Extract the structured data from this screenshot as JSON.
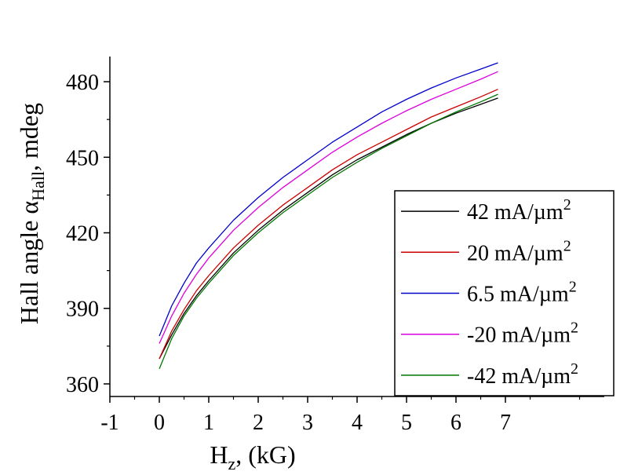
{
  "chart_data": {
    "type": "line",
    "xlabel": {
      "main": "H",
      "sub": "z",
      "rest": ", (kG)"
    },
    "ylabel": {
      "main": "Hall angle α",
      "sub": "Hall",
      "rest": ", mdeg"
    },
    "xlim": [
      -1,
      9
    ],
    "ylim": [
      355,
      490
    ],
    "xticks": [
      -1,
      0,
      1,
      2,
      3,
      4,
      5,
      6,
      7
    ],
    "yticks": [
      360,
      390,
      420,
      450,
      480
    ],
    "x": [
      0,
      0.25,
      0.5,
      0.75,
      1,
      1.5,
      2,
      2.5,
      3,
      3.5,
      4,
      4.5,
      5,
      5.5,
      6,
      6.5,
      6.85
    ],
    "series": [
      {
        "name": "42 mA/µm",
        "sup": "2",
        "color": "#000000",
        "values": [
          370,
          379.5,
          388,
          395,
          401,
          412,
          421,
          429,
          436,
          443,
          449,
          454,
          459,
          463.5,
          467.5,
          471,
          473.5
        ]
      },
      {
        "name": "20 mA/µm",
        "sup": "2",
        "color": "#cc0000",
        "values": [
          370,
          381,
          389.5,
          397,
          403,
          414,
          423,
          431,
          438,
          445,
          451,
          456,
          461,
          466,
          470,
          474,
          477
        ]
      },
      {
        "name": "6.5 mA/µm",
        "sup": "2",
        "color": "#0000cc",
        "values": [
          379,
          391,
          400,
          408,
          414,
          425,
          434,
          442,
          449,
          456,
          462,
          468,
          473,
          477.5,
          481.5,
          485,
          487.5
        ]
      },
      {
        "name": "-20 mA/µm",
        "sup": "2",
        "color": "#dd00dd",
        "values": [
          376,
          387,
          396,
          403.5,
          410,
          421,
          430,
          438,
          445,
          452,
          458,
          463.5,
          468.5,
          473,
          477,
          481,
          484
        ]
      },
      {
        "name": "-42 mA/µm",
        "sup": "2",
        "color": "#007700",
        "values": [
          366,
          378,
          387,
          394,
          400,
          411,
          420,
          428,
          435,
          442,
          448,
          453.5,
          458.5,
          463.5,
          468,
          472,
          475
        ]
      }
    ],
    "legend_position": "bottom-right",
    "grid": false
  }
}
